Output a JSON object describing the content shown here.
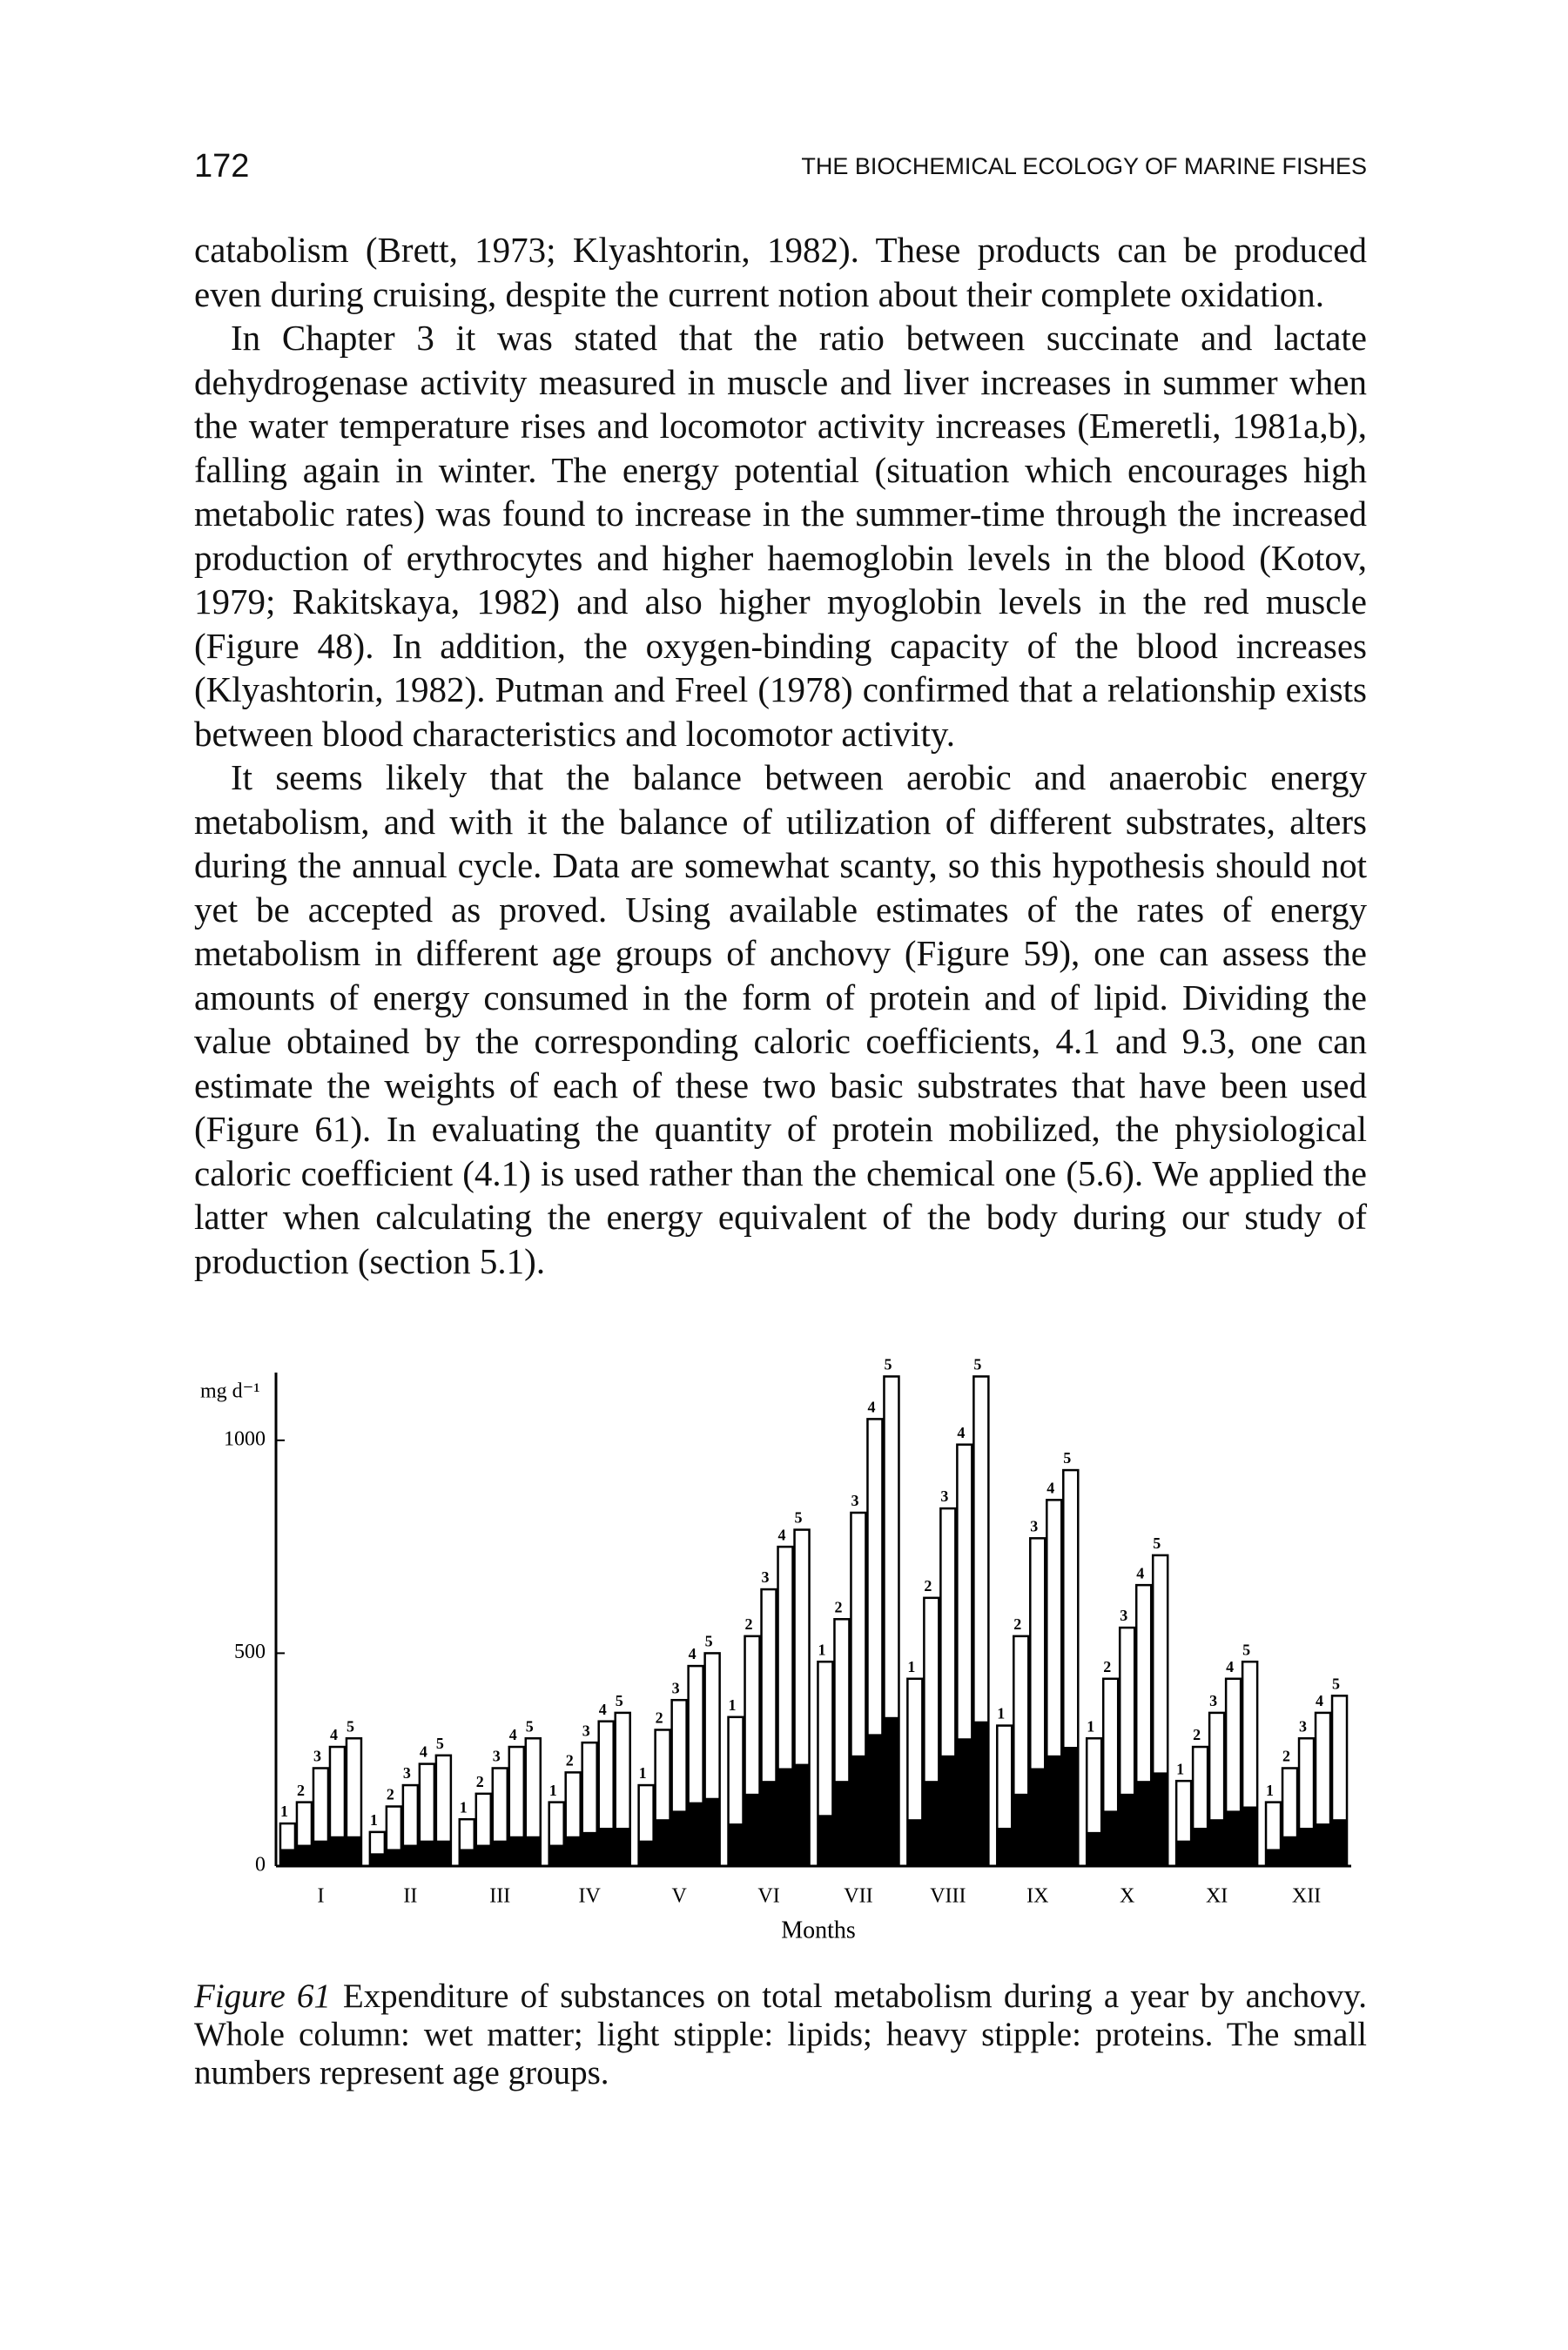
{
  "header": {
    "page_number": "172",
    "running_title": "THE BIOCHEMICAL ECOLOGY OF MARINE FISHES"
  },
  "body": {
    "paragraphs": [
      "catabolism (Brett, 1973; Klyashtorin, 1982). These products can be produced even during cruising, despite the current notion about their complete oxidation.",
      "In Chapter 3 it was stated that the ratio between succinate and lactate dehydrogenase activity measured in muscle and liver increases in summer when the water temperature rises and locomotor activity increases (Emeretli, 1981a,b), falling again in winter. The energy potential (situation which encourages high metabolic rates) was found to increase in the summer-time through the increased production of erythrocytes and higher haemoglobin levels in the blood (Kotov, 1979; Rakitskaya, 1982) and also higher myoglobin levels in the red muscle (Figure 48). In addition, the oxygen-binding capacity of the blood increases (Klyashtorin, 1982). Putman and Freel (1978) confirmed that a relationship exists between blood characteristics and locomotor activity.",
      "It seems likely that the balance between aerobic and anaerobic energy metabolism, and with it the balance of utilization of different substrates, alters during the annual cycle. Data are somewhat scanty, so this hypothesis should not yet be accepted as proved. Using available estimates of the rates of energy metabolism in different age groups of anchovy (Figure 59), one can assess the amounts of energy consumed in the form of protein and of lipid. Dividing the value obtained by the corresponding caloric coefficients, 4.1 and 9.3, one can estimate the weights of each of these two basic substrates that have been used (Figure 61). In evaluating the quantity of protein mobilized, the physiological caloric coefficient (4.1) is used rather than the chemical one (5.6). We applied the latter when calculating the energy equivalent of the body during our study of production (section 5.1)."
    ]
  },
  "chart_data": {
    "type": "bar",
    "y_label": "mg d⁻¹",
    "x_label": "Months",
    "categories": [
      "I",
      "II",
      "III",
      "IV",
      "V",
      "VI",
      "VII",
      "VIII",
      "IX",
      "X",
      "XI",
      "XII"
    ],
    "ylim": [
      0,
      1200
    ],
    "yticks": [
      0,
      500,
      1000
    ],
    "series": [
      {
        "name": "1",
        "color": "#ffffff",
        "values": [
          100,
          80,
          110,
          150,
          190,
          350,
          480,
          440,
          330,
          300,
          200,
          150
        ],
        "protein": [
          40,
          30,
          40,
          50,
          60,
          100,
          120,
          110,
          90,
          80,
          60,
          40
        ]
      },
      {
        "name": "2",
        "color": "#ffffff",
        "values": [
          150,
          140,
          170,
          220,
          320,
          540,
          580,
          630,
          540,
          440,
          280,
          230
        ],
        "protein": [
          50,
          40,
          50,
          70,
          110,
          170,
          200,
          200,
          170,
          130,
          90,
          70
        ]
      },
      {
        "name": "3",
        "color": "#ffffff",
        "values": [
          230,
          190,
          230,
          290,
          390,
          650,
          830,
          840,
          770,
          560,
          360,
          300
        ],
        "protein": [
          60,
          50,
          60,
          80,
          130,
          200,
          260,
          260,
          230,
          170,
          110,
          90
        ]
      },
      {
        "name": "4",
        "color": "#ffffff",
        "values": [
          280,
          240,
          280,
          340,
          470,
          750,
          1050,
          990,
          860,
          660,
          440,
          360
        ],
        "protein": [
          70,
          60,
          70,
          90,
          150,
          230,
          310,
          300,
          260,
          200,
          130,
          100
        ]
      },
      {
        "name": "5",
        "color": "#ffffff",
        "values": [
          300,
          260,
          300,
          360,
          500,
          790,
          1150,
          1150,
          930,
          730,
          480,
          400
        ],
        "protein": [
          70,
          60,
          70,
          90,
          160,
          240,
          350,
          340,
          280,
          220,
          140,
          110
        ]
      }
    ],
    "protein_color": "#000000"
  },
  "caption": {
    "label": "Figure 61",
    "text": "Expenditure of substances on total metabolism during a year by anchovy. Whole column: wet matter; light stipple: lipids; heavy stipple: proteins. The small numbers represent age groups."
  }
}
